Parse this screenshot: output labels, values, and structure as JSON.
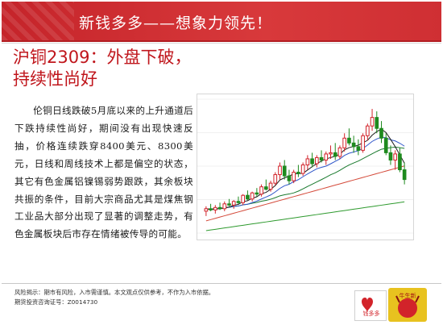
{
  "banner": {
    "title": "新钱多多——想象力领先！"
  },
  "headline": {
    "line1": "沪铜2309：外盘下破，",
    "line2": "持续性尚好"
  },
  "body": {
    "paragraph": "伦铜日线跌破5月底以来的上升通道后下跌持续性尚好，期间没有出现快速反抽，价格连续跌穿8400美元、8300美元，日线和周线技术上都是偏空的状态，其它有色金属铝镍锡弱势跟跌，其余板块共振的条件，目前大宗商品尤其是煤焦钢工业品大部分出现了显著的调整走势，有色金属板块后市存在情绪被传导的可能。"
  },
  "chart_data": {
    "type": "candlestick",
    "title": "",
    "xlabel": "",
    "ylabel": "",
    "series_colors": {
      "up": "#d2232a",
      "down": "#1e8a1e",
      "ma_short": "#1c1c1c",
      "ma_mid": "#2f56c9",
      "ma_long": "#1a7a2e",
      "ma_red": "#d44a3a",
      "ma_green": "#2e9a2e"
    },
    "candles_ohlc": [
      [
        78,
        82,
        74,
        80
      ],
      [
        80,
        84,
        78,
        79
      ],
      [
        79,
        83,
        76,
        81
      ],
      [
        81,
        85,
        79,
        80
      ],
      [
        80,
        86,
        78,
        84
      ],
      [
        84,
        88,
        82,
        83
      ],
      [
        83,
        87,
        80,
        86
      ],
      [
        86,
        90,
        84,
        85
      ],
      [
        85,
        92,
        83,
        91
      ],
      [
        91,
        95,
        87,
        88
      ],
      [
        88,
        94,
        86,
        93
      ],
      [
        93,
        97,
        90,
        92
      ],
      [
        92,
        100,
        90,
        98
      ],
      [
        98,
        104,
        95,
        96
      ],
      [
        96,
        103,
        94,
        101
      ],
      [
        101,
        110,
        99,
        108
      ],
      [
        108,
        118,
        104,
        115
      ],
      [
        115,
        120,
        104,
        107
      ],
      [
        107,
        112,
        100,
        103
      ],
      [
        103,
        112,
        101,
        110
      ],
      [
        110,
        116,
        106,
        109
      ],
      [
        109,
        118,
        107,
        116
      ],
      [
        116,
        124,
        112,
        121
      ],
      [
        121,
        126,
        114,
        117
      ],
      [
        117,
        124,
        114,
        122
      ],
      [
        122,
        128,
        118,
        120
      ],
      [
        120,
        127,
        116,
        125
      ],
      [
        125,
        132,
        121,
        126
      ],
      [
        126,
        134,
        120,
        123
      ],
      [
        123,
        132,
        121,
        130
      ],
      [
        130,
        142,
        127,
        138
      ],
      [
        138,
        146,
        132,
        134
      ],
      [
        134,
        140,
        126,
        131
      ],
      [
        131,
        137,
        124,
        128
      ],
      [
        128,
        142,
        126,
        140
      ],
      [
        140,
        150,
        136,
        148
      ],
      [
        148,
        162,
        144,
        155
      ],
      [
        155,
        160,
        142,
        146
      ],
      [
        146,
        152,
        134,
        138
      ],
      [
        138,
        142,
        124,
        126
      ],
      [
        126,
        132,
        116,
        120
      ],
      [
        120,
        128,
        112,
        125
      ],
      [
        125,
        130,
        110,
        112
      ],
      [
        112,
        118,
        100,
        104
      ]
    ],
    "ylim": [
      60,
      170
    ]
  },
  "footer": {
    "line1": "风险揭示：期市有风险，入市需谨慎。本文观点仅供参考，不作为入市依据。",
    "line2": "期货投资咨询证号：Z0014730"
  },
  "logos": {
    "logo1_text": "钱多多",
    "logo2_text": "牛生新"
  }
}
